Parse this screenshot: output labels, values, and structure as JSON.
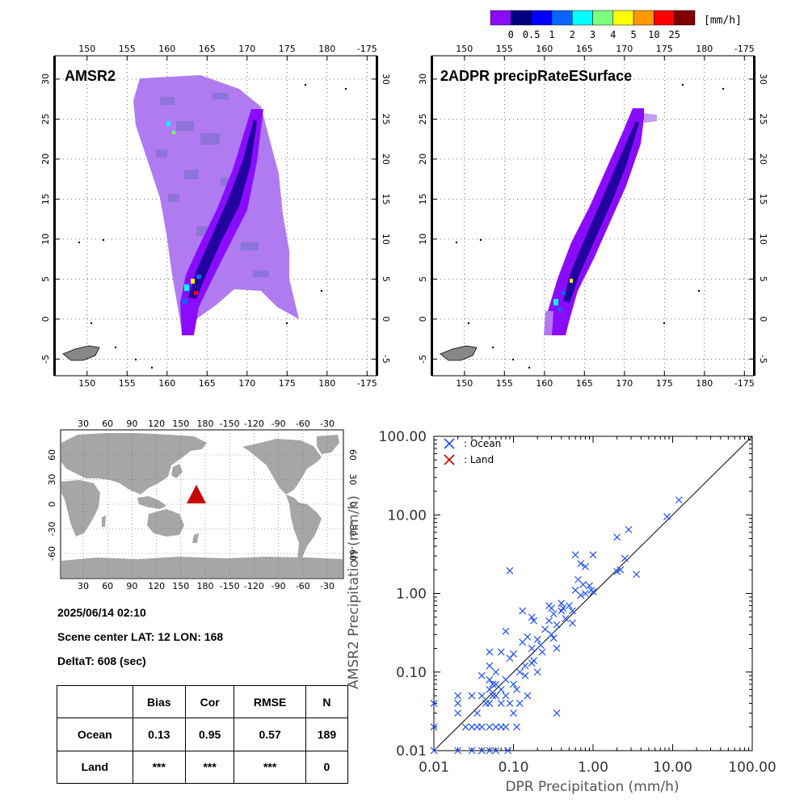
{
  "colors": {
    "ocean": "#1f4fff",
    "land": "#cc0000",
    "land_fill": "#a6a6a6",
    "triangle": "#c80000"
  },
  "colorbar": {
    "colors": [
      "#8a0cff",
      "#000080",
      "#0000ff",
      "#0a64ff",
      "#00ffff",
      "#7fff7f",
      "#ffff00",
      "#ff9900",
      "#ff0000",
      "#800000"
    ],
    "labels": [
      "0",
      "0.5",
      "1",
      "2",
      "3",
      "4",
      "5",
      "10",
      "25"
    ],
    "unit": "[mm/h]"
  },
  "panels": {
    "amsr2": {
      "title": "AMSR2"
    },
    "dpr": {
      "title": "2ADPR precipRateESurface"
    },
    "lon_ticks": [
      "150",
      "155",
      "160",
      "165",
      "170",
      "175",
      "180",
      "-175"
    ],
    "lat_ticks": [
      "30",
      "25",
      "20",
      "15",
      "10",
      "5",
      "0",
      "-5"
    ]
  },
  "world": {
    "lon_ticks": [
      "30",
      "60",
      "90",
      "120",
      "150",
      "180",
      "-150",
      "-120",
      "-90",
      "-60",
      "-30"
    ],
    "lat_ticks": [
      "60",
      "30",
      "0",
      "-30",
      "-60"
    ],
    "marker_shape": "triangle"
  },
  "info": {
    "datetime": "2025/06/14 02:10",
    "scene_center": "Scene center LAT: 12   LON: 168",
    "deltat": "DeltaT:  608 (sec)"
  },
  "stats": {
    "headers": [
      "",
      "Bias",
      "Cor",
      "RMSE",
      "N"
    ],
    "rows": [
      [
        "Ocean",
        "0.13",
        "0.95",
        "0.57",
        "189"
      ],
      [
        "Land",
        "***",
        "***",
        "***",
        "0"
      ]
    ]
  },
  "chart_data": {
    "type": "scatter",
    "xlabel": "DPR Precipitation (mm/h)",
    "ylabel": "AMSR2 Precipitation (mm/h)",
    "xscale": "log",
    "yscale": "log",
    "xlim": [
      0.01,
      100
    ],
    "ylim": [
      0.01,
      100
    ],
    "x_tick_labels": [
      "0.01",
      "0.10",
      "1.00",
      "10.00",
      "100.00"
    ],
    "y_tick_labels": [
      "0.01",
      "0.10",
      "1.00",
      "10.00",
      "100.00"
    ],
    "reference_line": "1:1",
    "legend": [
      "Ocean",
      "Land"
    ],
    "legend_labels": [
      ": Ocean",
      ": Land"
    ],
    "legend_position": "top-left",
    "series": [
      {
        "name": "Ocean",
        "points": [
          [
            0.01,
            0.04
          ],
          [
            0.01,
            0.02
          ],
          [
            0.01,
            0.01
          ],
          [
            0.02,
            0.05
          ],
          [
            0.02,
            0.04
          ],
          [
            0.02,
            0.03
          ],
          [
            0.02,
            0.01
          ],
          [
            0.025,
            0.02
          ],
          [
            0.03,
            0.05
          ],
          [
            0.03,
            0.02
          ],
          [
            0.03,
            0.01
          ],
          [
            0.035,
            0.03
          ],
          [
            0.035,
            0.02
          ],
          [
            0.04,
            0.09
          ],
          [
            0.04,
            0.05
          ],
          [
            0.04,
            0.02
          ],
          [
            0.04,
            0.01
          ],
          [
            0.045,
            0.04
          ],
          [
            0.05,
            0.18
          ],
          [
            0.05,
            0.12
          ],
          [
            0.05,
            0.08
          ],
          [
            0.05,
            0.06
          ],
          [
            0.05,
            0.04
          ],
          [
            0.05,
            0.02
          ],
          [
            0.05,
            0.01
          ],
          [
            0.055,
            0.07
          ],
          [
            0.055,
            0.05
          ],
          [
            0.06,
            0.1
          ],
          [
            0.06,
            0.07
          ],
          [
            0.06,
            0.05
          ],
          [
            0.06,
            0.02
          ],
          [
            0.06,
            0.01
          ],
          [
            0.07,
            0.18
          ],
          [
            0.07,
            0.06
          ],
          [
            0.07,
            0.04
          ],
          [
            0.07,
            0.02
          ],
          [
            0.08,
            0.33
          ],
          [
            0.08,
            0.08
          ],
          [
            0.08,
            0.05
          ],
          [
            0.08,
            0.02
          ],
          [
            0.085,
            0.01
          ],
          [
            0.09,
            1.95
          ],
          [
            0.09,
            0.15
          ],
          [
            0.09,
            0.04
          ],
          [
            0.1,
            0.17
          ],
          [
            0.1,
            0.07
          ],
          [
            0.1,
            0.03
          ],
          [
            0.11,
            0.06
          ],
          [
            0.11,
            0.02
          ],
          [
            0.12,
            0.1
          ],
          [
            0.12,
            0.04
          ],
          [
            0.13,
            0.6
          ],
          [
            0.13,
            0.24
          ],
          [
            0.14,
            0.12
          ],
          [
            0.14,
            0.09
          ],
          [
            0.15,
            0.28
          ],
          [
            0.15,
            0.05
          ],
          [
            0.17,
            0.5
          ],
          [
            0.17,
            0.2
          ],
          [
            0.17,
            0.13
          ],
          [
            0.18,
            0.45
          ],
          [
            0.18,
            0.14
          ],
          [
            0.2,
            0.26
          ],
          [
            0.2,
            0.1
          ],
          [
            0.22,
            0.22
          ],
          [
            0.23,
            0.18
          ],
          [
            0.25,
            0.35
          ],
          [
            0.28,
            0.7
          ],
          [
            0.28,
            0.45
          ],
          [
            0.3,
            0.65
          ],
          [
            0.3,
            0.3
          ],
          [
            0.32,
            0.55
          ],
          [
            0.32,
            0.27
          ],
          [
            0.35,
            0.4
          ],
          [
            0.35,
            0.2
          ],
          [
            0.35,
            0.03
          ],
          [
            0.4,
            0.75
          ],
          [
            0.4,
            0.6
          ],
          [
            0.42,
            0.65
          ],
          [
            0.45,
            0.48
          ],
          [
            0.5,
            0.7
          ],
          [
            0.55,
            0.6
          ],
          [
            0.55,
            0.42
          ],
          [
            0.6,
            3.1
          ],
          [
            0.6,
            1.1
          ],
          [
            0.65,
            1.5
          ],
          [
            0.7,
            2.4
          ],
          [
            0.7,
            0.95
          ],
          [
            0.75,
            1.3
          ],
          [
            0.8,
            2.2
          ],
          [
            0.8,
            1.0
          ],
          [
            0.9,
            1.25
          ],
          [
            0.95,
            1.1
          ],
          [
            1.0,
            3.1
          ],
          [
            1.0,
            1.05
          ],
          [
            2.0,
            5.2
          ],
          [
            2.0,
            1.9
          ],
          [
            2.2,
            2.0
          ],
          [
            2.5,
            2.8
          ],
          [
            2.8,
            6.5
          ],
          [
            3.5,
            1.75
          ],
          [
            8.5,
            9.5
          ],
          [
            12.0,
            15.5
          ]
        ]
      },
      {
        "name": "Land",
        "points": []
      }
    ]
  }
}
